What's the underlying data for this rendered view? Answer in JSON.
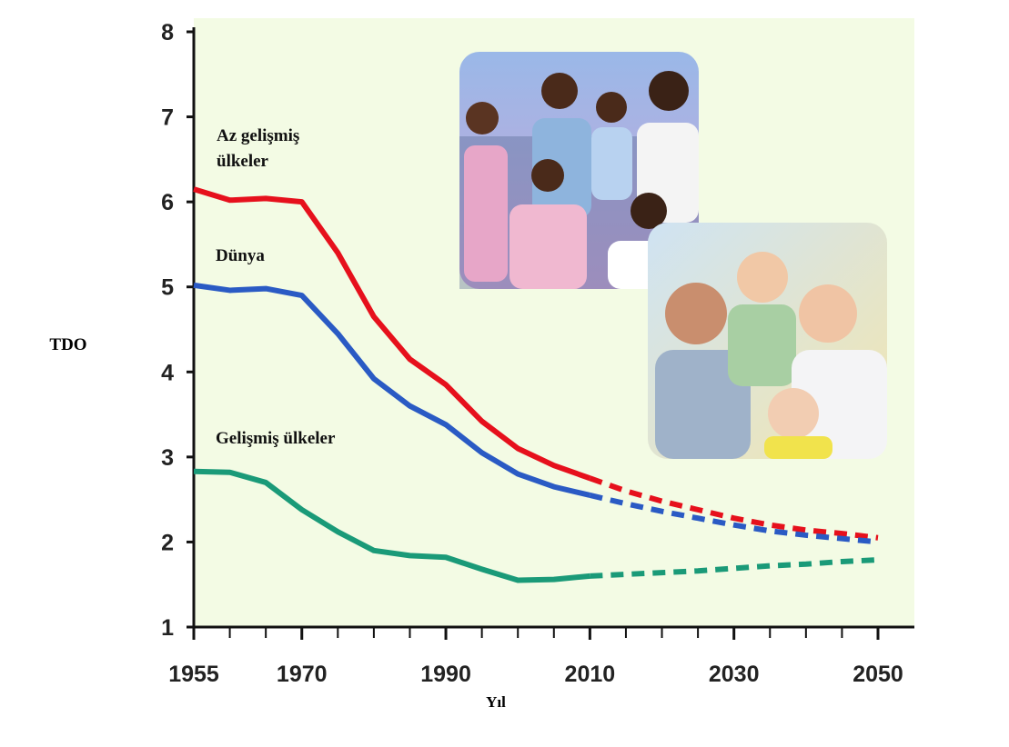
{
  "chart_data": {
    "type": "line",
    "x_label": "Yıl",
    "y_label": "TDO",
    "x": [
      1955,
      1960,
      1965,
      1970,
      1975,
      1980,
      1985,
      1990,
      1995,
      2000,
      2005,
      2010,
      2015,
      2020,
      2025,
      2030,
      2035,
      2040,
      2045,
      2050
    ],
    "dashed_from_x": 2010,
    "series": [
      {
        "name": "Az gelişmiş ülkeler",
        "color": "#e6101c",
        "values": [
          6.15,
          6.02,
          6.04,
          6.0,
          5.4,
          4.65,
          4.15,
          3.85,
          3.42,
          3.1,
          2.9,
          2.75,
          2.6,
          2.48,
          2.38,
          2.28,
          2.2,
          2.14,
          2.1,
          2.05
        ]
      },
      {
        "name": "Dünya",
        "color": "#2a5ac4",
        "values": [
          5.02,
          4.96,
          4.98,
          4.9,
          4.45,
          3.92,
          3.6,
          3.38,
          3.05,
          2.8,
          2.65,
          2.55,
          2.45,
          2.36,
          2.28,
          2.2,
          2.13,
          2.08,
          2.04,
          2.0
        ]
      },
      {
        "name": "Gelişmiş ülkeler",
        "color": "#1a9a78",
        "values": [
          2.83,
          2.82,
          2.7,
          2.38,
          2.12,
          1.9,
          1.84,
          1.82,
          1.68,
          1.55,
          1.56,
          1.6,
          1.62,
          1.64,
          1.66,
          1.69,
          1.72,
          1.74,
          1.77,
          1.79
        ]
      }
    ],
    "xlim": [
      1955,
      2050
    ],
    "xticks": [
      1955,
      1970,
      1990,
      2010,
      2030,
      2050
    ],
    "ylim": [
      1,
      8
    ],
    "yticks": [
      1,
      2,
      3,
      4,
      5,
      6,
      7,
      8
    ]
  }
}
